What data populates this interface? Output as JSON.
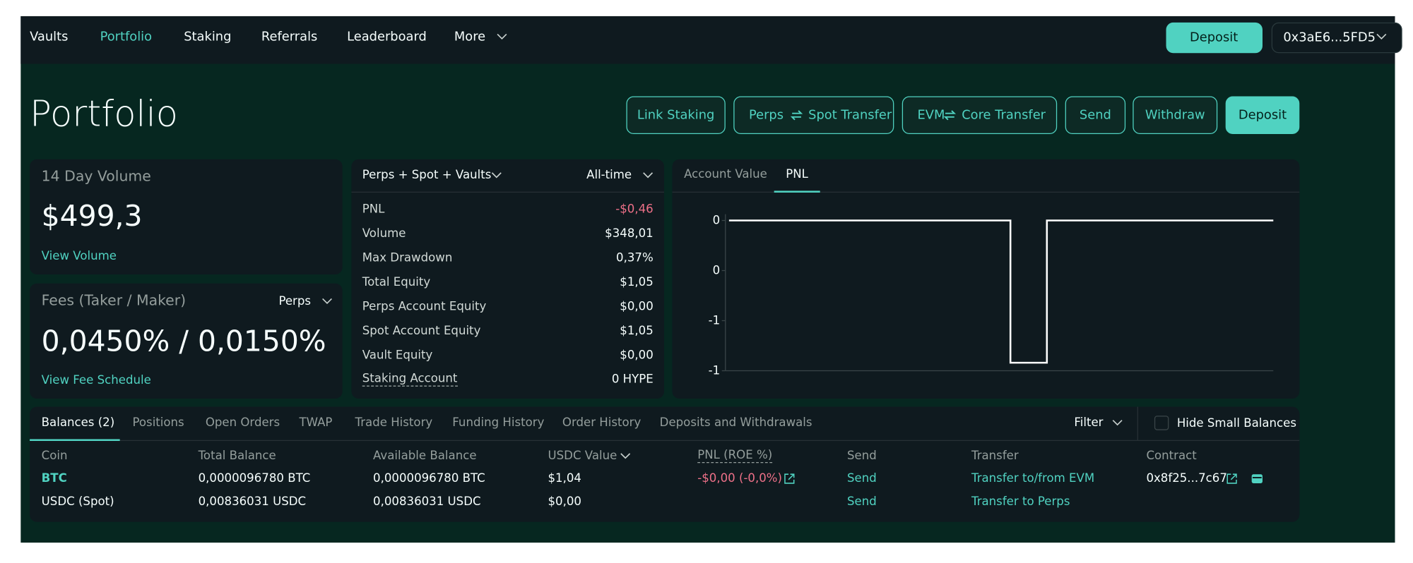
{
  "nav": {
    "items": [
      "Vaults",
      "Portfolio",
      "Staking",
      "Referrals",
      "Leaderboard",
      "More"
    ],
    "deposit": "Deposit",
    "wallet": "0x3aE6...5FD5"
  },
  "header": {
    "title": "Portfolio",
    "actions": [
      {
        "label": "Link Staking"
      },
      {
        "left": "Perps",
        "right": "Spot Transfer"
      },
      {
        "left": "EVM",
        "right": "Core Transfer"
      },
      {
        "label": "Send"
      },
      {
        "label": "Withdraw"
      },
      {
        "label": "Deposit"
      }
    ]
  },
  "volume": {
    "label": "14 Day Volume",
    "value": "$499,3",
    "link": "View Volume"
  },
  "fees": {
    "label": "Fees (Taker / Maker)",
    "selector": "Perps",
    "value": "0,0450% / 0,0150%",
    "link": "View Fee Schedule"
  },
  "stats": {
    "selector": "Perps + Spot + Vaults",
    "range": "All-time",
    "rows": [
      [
        "PNL",
        "-$0,46"
      ],
      [
        "Volume",
        "$348,01"
      ],
      [
        "Max Drawdown",
        "0,37%"
      ],
      [
        "Total Equity",
        "$1,05"
      ],
      [
        "Perps Account Equity",
        "$0,00"
      ],
      [
        "Spot Account Equity",
        "$1,05"
      ],
      [
        "Vault Equity",
        "$0,00"
      ],
      [
        "Staking Account",
        "0 HYPE"
      ]
    ]
  },
  "pnl_chart": {
    "tabs": [
      "Account Value",
      "PNL"
    ],
    "type": "line",
    "color": "#ffffff",
    "x": [
      0,
      51.7,
      51.7,
      58.4,
      58.4,
      100
    ],
    "values": [
      0,
      0,
      -0.71,
      -0.71,
      0,
      0
    ],
    "xlim": [
      0,
      100
    ],
    "ylim": [
      -0.75,
      0
    ],
    "yticks": [
      {
        "value": 0,
        "label": "0"
      },
      {
        "value": -0.25,
        "label": "0"
      },
      {
        "value": -0.5,
        "label": "-1"
      },
      {
        "value": -0.75,
        "label": "-1"
      }
    ]
  },
  "balances": {
    "tabs": [
      "Balances (2)",
      "Positions",
      "Open Orders",
      "TWAP",
      "Trade History",
      "Funding History",
      "Order History",
      "Deposits and Withdrawals"
    ],
    "filter": "Filter",
    "hide_small": "Hide Small Balances",
    "columns": [
      "Coin",
      "Total Balance",
      "Available Balance",
      "USDC Value",
      "PNL (ROE %)",
      "Send",
      "Transfer",
      "Contract"
    ],
    "rows": [
      {
        "coin": "BTC",
        "total": "0,0000096780 BTC",
        "available": "0,0000096780 BTC",
        "usdc": "$1,04",
        "pnl": "-$0,00 (-0,0%)",
        "send": "Send",
        "transfer": "Transfer to/from EVM",
        "contract": "0x8f25...7c67"
      },
      {
        "coin": "USDC (Spot)",
        "total": "0,00836031 USDC",
        "available": "0,00836031 USDC",
        "usdc": "$0,00",
        "send": "Send",
        "transfer": "Transfer to Perps"
      }
    ]
  }
}
